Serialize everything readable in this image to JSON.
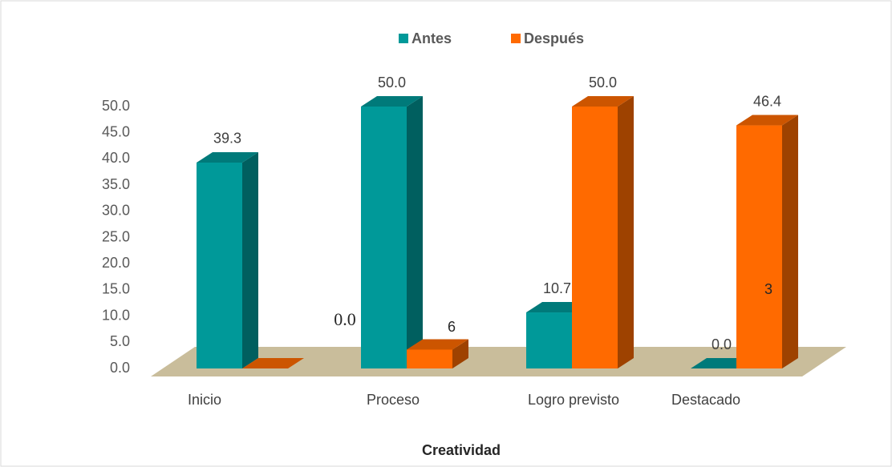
{
  "chart_data": {
    "type": "bar3d",
    "x_label": "Creatividad",
    "categories": [
      "Inicio",
      "Proceso",
      "Logro previsto",
      "Destacado"
    ],
    "series": [
      {
        "name": "Antes",
        "color": "#009999",
        "values": [
          39.3,
          50.0,
          10.7,
          0.0
        ],
        "value_labels": [
          "39.3",
          "50.0",
          "10.7",
          "0.0"
        ]
      },
      {
        "name": "Después",
        "color": "#ff6a00",
        "values": [
          0.0,
          3.6,
          50.0,
          46.4
        ],
        "value_labels": [
          null,
          null,
          "50.0",
          "46.4"
        ]
      }
    ],
    "ylim": [
      0,
      50
    ],
    "yticks": [
      {
        "value": 0,
        "label": "0.0"
      },
      {
        "value": 5,
        "label": "5.0"
      },
      {
        "value": 10,
        "label": "10.0"
      },
      {
        "value": 15,
        "label": "15.0"
      },
      {
        "value": 20,
        "label": "20.0"
      },
      {
        "value": 25,
        "label": "25.0"
      },
      {
        "value": 30,
        "label": "30.0"
      },
      {
        "value": 35,
        "label": "35.0"
      },
      {
        "value": 40,
        "label": "40.0"
      },
      {
        "value": 45,
        "label": "45.0"
      },
      {
        "value": 50,
        "label": "50.0"
      }
    ],
    "annotations": [
      "0.0",
      "6",
      "3"
    ],
    "legend": "top"
  }
}
